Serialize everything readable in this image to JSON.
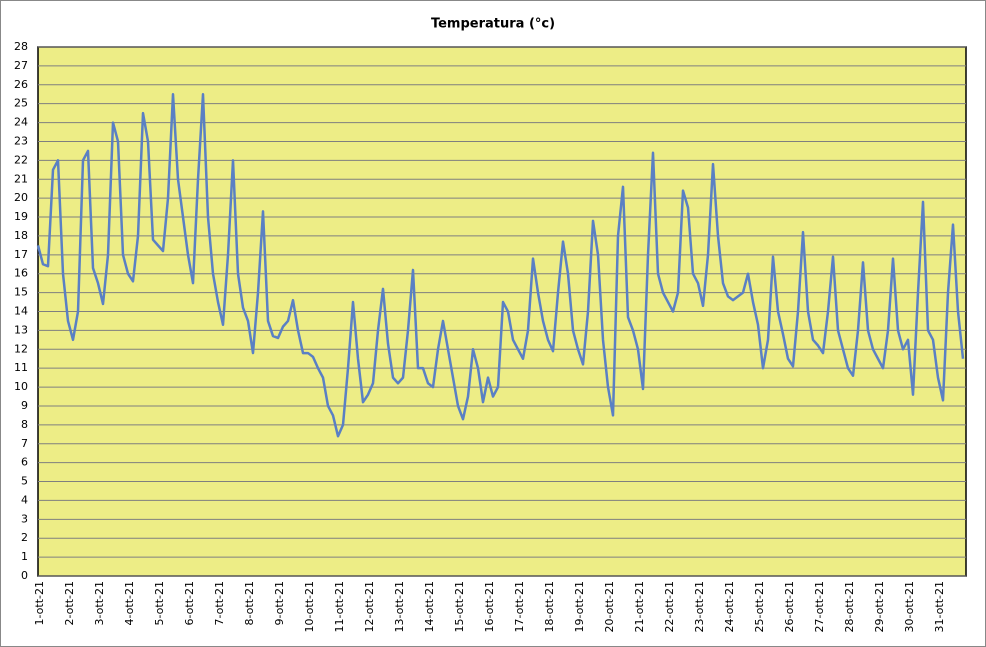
{
  "chart_data": {
    "type": "line",
    "title": "Temperatura (°c)",
    "categories": [
      "1-ott-21",
      null,
      null,
      null,
      null,
      null,
      "2-ott-21",
      null,
      null,
      null,
      null,
      null,
      "3-ott-21",
      null,
      null,
      null,
      null,
      null,
      "4-ott-21",
      null,
      null,
      null,
      null,
      null,
      "5-ott-21",
      null,
      null,
      null,
      null,
      null,
      "6-ott-21",
      null,
      null,
      null,
      null,
      null,
      "7-ott-21",
      null,
      null,
      null,
      null,
      null,
      "8-ott-21",
      null,
      null,
      null,
      null,
      null,
      "9-ott-21",
      null,
      null,
      null,
      null,
      null,
      "10-ott-21",
      null,
      null,
      null,
      null,
      null,
      "11-ott-21",
      null,
      null,
      null,
      null,
      null,
      "12-ott-21",
      null,
      null,
      null,
      null,
      null,
      "13-ott-21",
      null,
      null,
      null,
      null,
      null,
      "14-ott-21",
      null,
      null,
      null,
      null,
      null,
      "15-ott-21",
      null,
      null,
      null,
      null,
      null,
      "16-ott-21",
      null,
      null,
      null,
      null,
      null,
      "17-ott-21",
      null,
      null,
      null,
      null,
      null,
      "18-ott-21",
      null,
      null,
      null,
      null,
      null,
      "19-ott-21",
      null,
      null,
      null,
      null,
      null,
      "20-ott-21",
      null,
      null,
      null,
      null,
      null,
      "21-ott-21",
      null,
      null,
      null,
      null,
      null,
      "22-ott-21",
      null,
      null,
      null,
      null,
      null,
      "23-ott-21",
      null,
      null,
      null,
      null,
      null,
      "24-ott-21",
      null,
      null,
      null,
      null,
      null,
      "25-ott-21",
      null,
      null,
      null,
      null,
      null,
      "26-ott-21",
      null,
      null,
      null,
      null,
      null,
      "27-ott-21",
      null,
      null,
      null,
      null,
      null,
      "28-ott-21",
      null,
      null,
      null,
      null,
      null,
      "29-ott-21",
      null,
      null,
      null,
      null,
      null,
      "30-ott-21",
      null,
      null,
      null,
      null,
      null,
      "31-ott-21",
      null,
      null,
      null,
      null,
      null
    ],
    "values": [
      17.5,
      16.5,
      16.4,
      21.5,
      22,
      16,
      13.5,
      12.5,
      14,
      22,
      22.5,
      16.3,
      15.5,
      14.4,
      17,
      24,
      23,
      17,
      16,
      15.6,
      18,
      24.5,
      23,
      17.8,
      17.5,
      17.2,
      20,
      25.5,
      21,
      19,
      17,
      15.5,
      21,
      25.5,
      19,
      16,
      14.5,
      13.3,
      17,
      22,
      16,
      14.2,
      13.5,
      11.8,
      15,
      19.3,
      13.5,
      12.7,
      12.6,
      13.2,
      13.5,
      14.6,
      13,
      11.8,
      11.8,
      11.6,
      11,
      10.5,
      9,
      8.5,
      7.4,
      8,
      11,
      14.5,
      11.5,
      9.2,
      9.6,
      10.2,
      13,
      15.2,
      12.3,
      10.5,
      10.2,
      10.5,
      13,
      16.2,
      11,
      11,
      10.2,
      10,
      12,
      13.5,
      12,
      10.5,
      9,
      8.3,
      9.5,
      12,
      11,
      9.2,
      10.5,
      9.5,
      10,
      14.5,
      14,
      12.5,
      12,
      11.5,
      13,
      16.8,
      15,
      13.5,
      12.5,
      11.9,
      15,
      17.7,
      16,
      13,
      12,
      11.2,
      14,
      18.8,
      17,
      12.5,
      10,
      8.5,
      18,
      20.6,
      13.7,
      13,
      12,
      9.9,
      17,
      22.4,
      16,
      15,
      14.5,
      14,
      15,
      20.4,
      19.5,
      16,
      15.5,
      14.3,
      17,
      21.8,
      18,
      15.5,
      14.8,
      14.6,
      14.8,
      15,
      16,
      14.5,
      13.3,
      11,
      12.5,
      16.9,
      14,
      12.8,
      11.5,
      11.1,
      14,
      18.2,
      14,
      12.5,
      12.2,
      11.8,
      14,
      16.9,
      13,
      12,
      11,
      10.6,
      13,
      16.6,
      13,
      12,
      11.5,
      11,
      13,
      16.8,
      13,
      12,
      12.5,
      9.6,
      15,
      19.8,
      13,
      12.5,
      10.5,
      9.3,
      15,
      18.6,
      14,
      11.5
    ],
    "color": "#5a80c4",
    "ylim": [
      0,
      28
    ],
    "yticks": [
      0,
      1,
      2,
      3,
      4,
      5,
      6,
      7,
      8,
      9,
      10,
      11,
      12,
      13,
      14,
      15,
      16,
      17,
      18,
      19,
      20,
      21,
      22,
      23,
      24,
      25,
      26,
      27,
      28
    ],
    "grid": true
  }
}
